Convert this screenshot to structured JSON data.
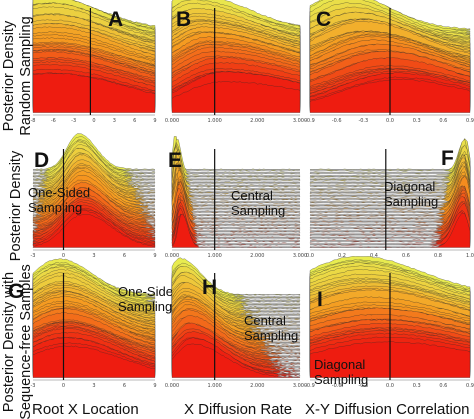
{
  "row_labels": [
    [
      "Posterior Density",
      "Random Sampling"
    ],
    [
      "Posterior Density"
    ],
    [
      "Posterior Density with",
      "Sequence-free Samples"
    ]
  ],
  "column_labels": [
    "Root X Location",
    "X Diffusion Rate",
    "X-Y Diffusion Correlation"
  ],
  "chart_data": [
    {
      "type": "area",
      "panel": "A",
      "title": "",
      "annotation": [],
      "xlabel": "",
      "ylabel": "",
      "ticks": [
        "-8",
        "-6",
        "-3",
        "0",
        "3",
        "6",
        "9"
      ],
      "reference_x": 0,
      "xlim": [
        -8,
        9
      ],
      "peak": 0.15,
      "spread": 0.55,
      "skew": 0,
      "drift": 0.0,
      "layers": 60,
      "grid": false
    },
    {
      "type": "area",
      "panel": "B",
      "title": "",
      "annotation": [],
      "xlabel": "",
      "ylabel": "",
      "ticks": [
        "0.000",
        "1.000",
        "2.000",
        "3.000"
      ],
      "reference_x": 1.0,
      "xlim": [
        0,
        3
      ],
      "peak": 0.12,
      "spread": 0.4,
      "skew": 0.9,
      "drift": 0.28,
      "layers": 60,
      "grid": false
    },
    {
      "type": "area",
      "panel": "C",
      "title": "",
      "annotation": [],
      "xlabel": "",
      "ylabel": "",
      "ticks": [
        "-0.9",
        "-0.6",
        "-0.3",
        "0.0",
        "0.3",
        "0.6",
        "0.9"
      ],
      "reference_x": 0.0,
      "xlim": [
        -0.9,
        0.9
      ],
      "peak": 0.2,
      "spread": 0.35,
      "skew": 0.3,
      "drift": 0.35,
      "layers": 60,
      "grid": false
    },
    {
      "type": "area",
      "panel": "D",
      "title": "",
      "annotation": [
        "One-Sided",
        "Sampling"
      ],
      "xlabel": "",
      "ylabel": "",
      "ticks": [
        "-3",
        "0",
        "3",
        "6",
        "9"
      ],
      "reference_x": 0,
      "xlim": [
        -3,
        9
      ],
      "peak": 0.38,
      "spread": 0.16,
      "skew": 0.4,
      "drift": 0.03,
      "layers": 55,
      "grid": false
    },
    {
      "type": "area",
      "panel": "E",
      "title": "",
      "annotation": [
        "Central",
        "Sampling"
      ],
      "xlabel": "",
      "ylabel": "",
      "ticks": [
        "0.000",
        "1.000",
        "2.000",
        "3.000"
      ],
      "reference_x": 1.0,
      "xlim": [
        0,
        3
      ],
      "peak": 0.03,
      "spread": 0.03,
      "skew": 0.6,
      "drift": 0.04,
      "layers": 55,
      "grid": false
    },
    {
      "type": "area",
      "panel": "F",
      "title": "",
      "annotation": [
        "Diagonal",
        "Sampling"
      ],
      "xlabel": "",
      "ylabel": "",
      "ticks": [
        "0.0",
        "0.2",
        "0.4",
        "0.6",
        "0.8",
        "1.0"
      ],
      "reference_x": 0.0,
      "xlim": [
        -0.9,
        1.0
      ],
      "peak": 0.97,
      "spread": 0.03,
      "skew": -0.6,
      "drift": -0.015,
      "layers": 55,
      "grid": false
    },
    {
      "type": "area",
      "panel": "G",
      "title": "",
      "annotation": [
        "One-Sided",
        "Sampling"
      ],
      "xlabel": "",
      "ylabel": "",
      "ticks": [
        "-3",
        "0",
        "3",
        "6",
        "9"
      ],
      "reference_x": 0,
      "xlim": [
        -3,
        9
      ],
      "peak": 0.22,
      "spread": 0.33,
      "skew": 0.2,
      "drift": 0.06,
      "layers": 60,
      "grid": false
    },
    {
      "type": "area",
      "panel": "H",
      "title": "",
      "annotation": [
        "Central",
        "Sampling"
      ],
      "xlabel": "",
      "ylabel": "",
      "ticks": [
        "0.000",
        "1.000",
        "2.000",
        "3.000"
      ],
      "reference_x": 1.0,
      "xlim": [
        0,
        3
      ],
      "peak": 0.07,
      "spread": 0.16,
      "skew": 0.7,
      "drift": 0.08,
      "layers": 60,
      "grid": false
    },
    {
      "type": "area",
      "panel": "I",
      "title": "",
      "annotation": [
        "Diagonal",
        "Sampling"
      ],
      "xlabel": "",
      "ylabel": "",
      "ticks": [
        "-0.9",
        "-0.6",
        "-0.3",
        "0.0",
        "0.3",
        "0.6",
        "0.9"
      ],
      "reference_x": 0.0,
      "xlim": [
        -0.9,
        0.9
      ],
      "peak": 0.3,
      "spread": 0.48,
      "skew": 0.2,
      "drift": 0.18,
      "layers": 60,
      "grid": false
    }
  ],
  "colors": {
    "top": "#e8ec50",
    "middle": "#f59a20",
    "bottom": "#ee1c10",
    "outline": "#2a2a2a",
    "reference_line": "#111111"
  }
}
